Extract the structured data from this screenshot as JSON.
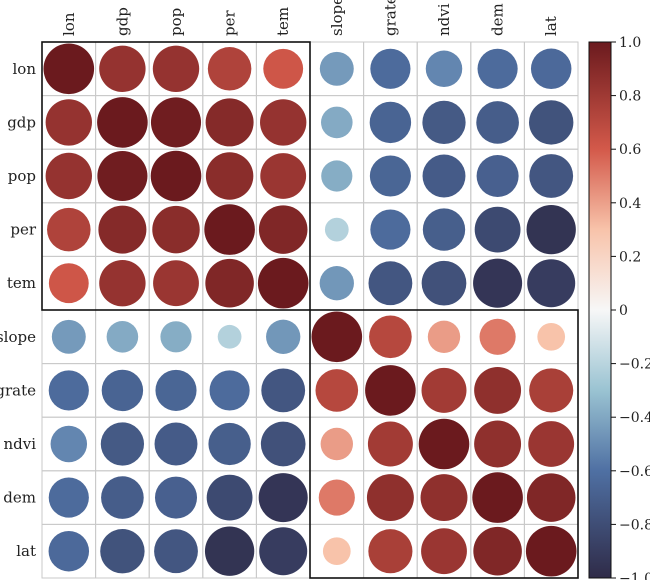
{
  "chart_data": {
    "type": "heatmap",
    "style": "correlogram-circles",
    "variables": [
      "lon",
      "gdp",
      "pop",
      "per",
      "tem",
      "slope",
      "grate",
      "ndvi",
      "dem",
      "lat"
    ],
    "matrix": [
      [
        1.0,
        0.84,
        0.84,
        0.74,
        0.62,
        -0.45,
        -0.63,
        -0.52,
        -0.63,
        -0.64
      ],
      [
        0.84,
        1.0,
        0.98,
        0.9,
        0.84,
        -0.39,
        -0.67,
        -0.73,
        -0.71,
        -0.77
      ],
      [
        0.84,
        0.98,
        1.0,
        0.88,
        0.82,
        -0.38,
        -0.66,
        -0.72,
        -0.69,
        -0.75
      ],
      [
        0.74,
        0.9,
        0.88,
        1.0,
        0.92,
        -0.22,
        -0.63,
        -0.7,
        -0.82,
        -0.95
      ],
      [
        0.62,
        0.84,
        0.82,
        0.92,
        1.0,
        -0.46,
        -0.75,
        -0.78,
        -0.94,
        -0.9
      ],
      [
        -0.45,
        -0.39,
        -0.38,
        -0.22,
        -0.46,
        1.0,
        0.71,
        0.41,
        0.51,
        0.3
      ],
      [
        -0.63,
        -0.67,
        -0.66,
        -0.63,
        -0.75,
        0.71,
        1.0,
        0.79,
        0.86,
        0.76
      ],
      [
        -0.52,
        -0.73,
        -0.72,
        -0.7,
        -0.78,
        0.41,
        0.79,
        1.0,
        0.86,
        0.82
      ],
      [
        -0.63,
        -0.71,
        -0.69,
        -0.82,
        -0.94,
        0.51,
        0.86,
        0.86,
        1.0,
        0.92
      ],
      [
        -0.64,
        -0.77,
        -0.75,
        -0.95,
        -0.9,
        0.3,
        0.76,
        0.82,
        0.92,
        1.0
      ]
    ],
    "clusters": [
      [
        0,
        4
      ],
      [
        5,
        9
      ]
    ],
    "colorbar": {
      "min": -1.0,
      "max": 1.0,
      "ticks": [
        "1.0",
        "0.8",
        "0.6",
        "0.4",
        "0.2",
        "0",
        "−0.2",
        "−0.4",
        "−0.6",
        "−0.8",
        "−1.0"
      ],
      "tick_values": [
        1.0,
        0.8,
        0.6,
        0.4,
        0.2,
        0,
        -0.2,
        -0.4,
        -0.6,
        -0.8,
        -1.0
      ]
    },
    "colors": {
      "negative_strong": "#2f2b48",
      "negative_mid": "#4f70a3",
      "negative_light": "#9ac3d2",
      "neutral": "#f7f7f7",
      "positive_light": "#f8c3aa",
      "positive_mid": "#d3594a",
      "positive_strong": "#6b1a1e"
    }
  }
}
